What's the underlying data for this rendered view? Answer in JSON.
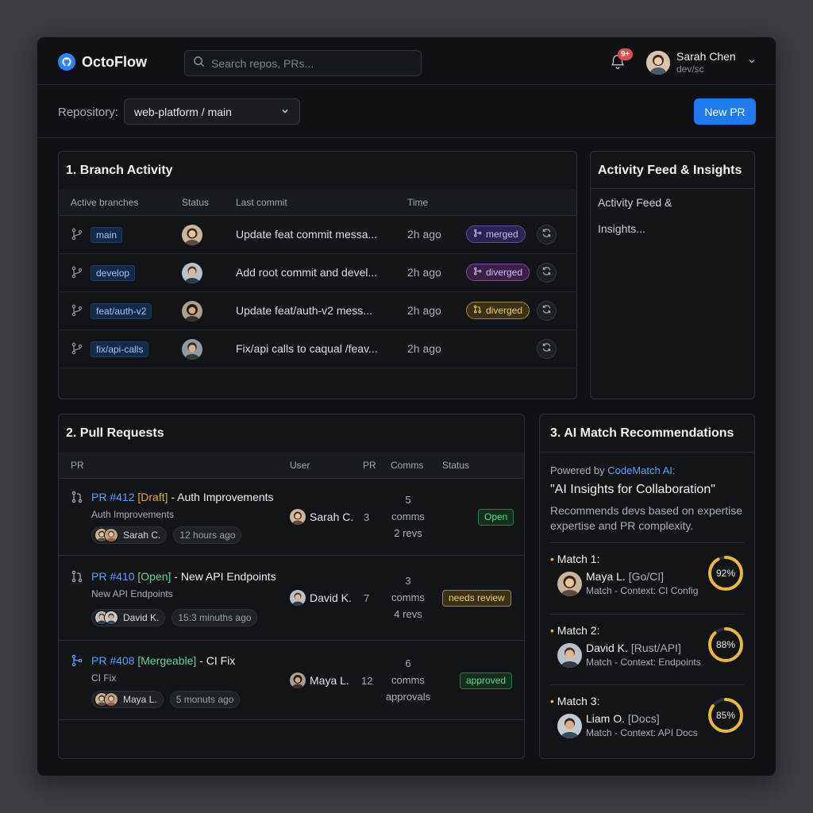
{
  "app": {
    "name": "OctoFlow"
  },
  "search": {
    "placeholder": "Search repos, PRs..."
  },
  "notifications": {
    "badge": "9+"
  },
  "user": {
    "name": "Sarah Chen",
    "handle": "dev/sc"
  },
  "repository": {
    "label": "Repository:",
    "selected": "web-platform / main",
    "new_pr_label": "New PR"
  },
  "branch_activity": {
    "title": "1. Branch Activity",
    "columns": [
      "Active branches",
      "Status",
      "Last commit",
      "Time"
    ],
    "rows": [
      {
        "branch": "main",
        "commit": "Update feat commit messa...",
        "time": "2h ago",
        "status": "merged",
        "status_kind": "merged"
      },
      {
        "branch": "develop",
        "commit": "Add root commit and devel...",
        "time": "2h ago",
        "status": "diverged",
        "status_kind": "diverged"
      },
      {
        "branch": "feat/auth-v2",
        "commit": "Update feat/auth-v2 mess...",
        "time": "2h ago",
        "status": "diverged",
        "status_kind": "warn"
      },
      {
        "branch": "fix/api-calls",
        "commit": "Fix/api calls to caqual /feav...",
        "time": "2h ago",
        "status": "",
        "status_kind": "none"
      }
    ]
  },
  "activity_feed": {
    "title": "Activity Feed & Insights",
    "body_line1": "Activity Feed &",
    "body_line2": "Insights..."
  },
  "pull_requests": {
    "title": "2. Pull Requests",
    "columns": [
      "PR",
      "User",
      "PR",
      "Comms",
      "Status"
    ],
    "rows": [
      {
        "number": "PR #412",
        "tag": "[Draft]",
        "title": " - Auth Improvements",
        "subtitle": "Auth Improvements",
        "chip_user": "Sarah C.",
        "chip_time": "12 hours ago",
        "user": "Sarah C.",
        "pr_count": "3",
        "comms_1": "5",
        "comms_2": "comms",
        "comms_3": "2 revs",
        "status": "Open"
      },
      {
        "number": "PR #410",
        "tag": "[Open]",
        "title": " - New API Endpoints",
        "subtitle": "New API Endpoints",
        "chip_user": "David K.",
        "chip_time": "15:3 minuths ago",
        "user": "David K.",
        "pr_count": "7",
        "comms_1": "3",
        "comms_2": "comms",
        "comms_3": "4 revs",
        "status": "needs review"
      },
      {
        "number": "PR #408",
        "tag": "[Mergeable]",
        "title": " - CI Fix",
        "subtitle": "CI Fix",
        "chip_user": "Maya L.",
        "chip_time": "5 monuts ago",
        "user": "Maya L.",
        "pr_count": "12",
        "comms_1": "6",
        "comms_2": "comms",
        "comms_3": "approvals",
        "status": "approved"
      }
    ]
  },
  "ai_match": {
    "title": "3. AI Match Recommendations",
    "powered_prefix": "Powered by ",
    "powered_brand": "CodeMatch AI:",
    "headline": "\"AI Insights for Collaboration\"",
    "description_1": "Recommends devs based on expertise",
    "description_2": "expertise and PR complexity.",
    "matches": [
      {
        "label": "Match 1:",
        "name": "Maya L.",
        "role": "[Go/CI]",
        "context": "Match - Context: CI Config",
        "score": 92,
        "score_text": "92%"
      },
      {
        "label": "Match 2:",
        "name": "David K.",
        "role": "[Rust/API]",
        "context": "Match - Context: Endpoints",
        "score": 88,
        "score_text": "88%"
      },
      {
        "label": "Match 3:",
        "name": "Liam O.",
        "role": "[Docs]",
        "context": "Match - Context: API Docs",
        "score": 85,
        "score_text": "85%"
      }
    ]
  },
  "colors": {
    "accent": "#1f7aeb",
    "brand_blue": "#2f81f7",
    "gold": "#e8b83a",
    "green": "#5fd68a"
  },
  "icons": [
    "octoflow-logo-icon",
    "search-icon",
    "bell-icon",
    "chevron-down-icon",
    "git-branch-icon",
    "sync-icon",
    "pull-request-icon",
    "merge-icon"
  ]
}
